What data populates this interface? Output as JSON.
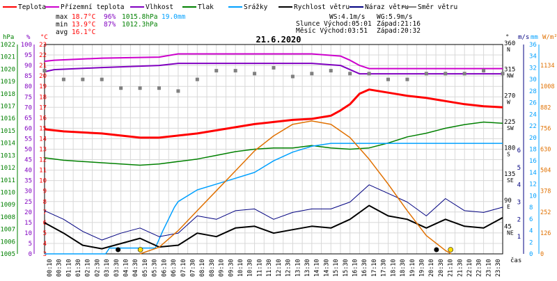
{
  "date": "21.6.2020",
  "legend": [
    {
      "label": "Teplota",
      "color": "#ff0000"
    },
    {
      "label": "Přízemní teplota",
      "color": "#cc00cc"
    },
    {
      "label": "Vlhkost",
      "color": "#8000c0"
    },
    {
      "label": "Tlak",
      "color": "#008000"
    },
    {
      "label": "Srážky",
      "color": "#00a0ff"
    },
    {
      "label": "Rychlost větru",
      "color": "#000000"
    },
    {
      "label": "Náraz větru",
      "color": "#000080"
    },
    {
      "label": "Směr větru",
      "color": "#808080"
    }
  ],
  "stats": {
    "max_label": "max",
    "max_temp": "18.7°C",
    "max_hum": "96%",
    "max_press": "1015.8hPa",
    "max_rain": "19.0mm",
    "min_label": "min",
    "min_temp": "13.9°C",
    "min_hum": "87%",
    "min_press": "1012.3hPa",
    "avg_label": "avg",
    "avg_temp": "16.1°C",
    "ws": "WS:4.1m/s",
    "wg": "WG:5.9m/s",
    "sun": "Slunce Východ:05:01",
    "sun_set": "Západ:21:16",
    "moon": "Měsíc  Východ:03:51",
    "moon_set": "Západ:20:32"
  },
  "axis_units": {
    "hpa": "hPa",
    "pct": "%",
    "deg": "°C",
    "dir": "°",
    "ms": "m/s",
    "mm": "mm",
    "wm2": "W/m²",
    "time": "čas"
  },
  "colors": {
    "temp": "#ff0000",
    "dew": "#cc00cc",
    "hum": "#8000c0",
    "press": "#008000",
    "rain": "#00a0ff",
    "wind": "#000000",
    "gust": "#000080",
    "dir": "#808080",
    "solar": "#e07000"
  },
  "chart_data": {
    "type": "line",
    "title": "21.6.2020",
    "xlabel": "čas",
    "x_ticks": [
      "00:10",
      "00:30",
      "01:10",
      "01:30",
      "02:10",
      "02:30",
      "03:10",
      "03:30",
      "04:10",
      "04:30",
      "05:10",
      "05:30",
      "06:10",
      "06:30",
      "07:10",
      "07:30",
      "08:10",
      "08:30",
      "09:10",
      "09:30",
      "10:10",
      "10:30",
      "11:10",
      "11:30",
      "12:10",
      "12:30",
      "13:10",
      "13:30",
      "14:10",
      "14:30",
      "15:10",
      "15:30",
      "16:10",
      "16:30",
      "17:10",
      "17:30",
      "18:10",
      "18:30",
      "19:10",
      "19:30",
      "20:10",
      "20:30",
      "21:10",
      "21:30",
      "22:10",
      "22:30",
      "23:10",
      "23:30"
    ],
    "left_axes": {
      "temperature_c": {
        "min": 3,
        "max": 23,
        "ticks": [
          3,
          4,
          5,
          6,
          7,
          8,
          9,
          10,
          11,
          12,
          13,
          14,
          15,
          16,
          17,
          18,
          19,
          20,
          21,
          22,
          23
        ]
      },
      "humidity_pct": {
        "min": 0,
        "max": 100,
        "ticks": [
          0,
          5,
          10,
          15,
          20,
          25,
          30,
          35,
          40,
          45,
          50,
          55,
          60,
          65,
          70,
          75,
          80,
          85,
          90,
          95,
          100
        ]
      },
      "pressure_hpa": {
        "min": 1005,
        "max": 1022,
        "ticks": [
          1005,
          1006,
          1007,
          1008,
          1009,
          1010,
          1011,
          1012,
          1013,
          1014,
          1015,
          1016,
          1017,
          1018,
          1019,
          1020,
          1021,
          1022
        ]
      }
    },
    "right_axes": {
      "wind_dir_deg": {
        "min": 0,
        "max": 360,
        "ticks": [
          {
            "v": 360,
            "l": "360",
            "d": "N"
          },
          {
            "v": 315,
            "l": "315",
            "d": "NW"
          },
          {
            "v": 270,
            "l": "270",
            "d": "W"
          },
          {
            "v": 225,
            "l": "225",
            "d": "SW"
          },
          {
            "v": 180,
            "l": "180",
            "d": "S"
          },
          {
            "v": 135,
            "l": "135",
            "d": "SE"
          },
          {
            "v": 90,
            "l": "90",
            "d": "E"
          },
          {
            "v": 45,
            "l": "45",
            "d": "NE"
          }
        ]
      },
      "wind_ms": {
        "min": 0,
        "max": 6,
        "ticks": [
          1,
          2,
          3,
          4,
          5,
          6
        ]
      },
      "rain_mm": {
        "min": 0,
        "max": 36,
        "ticks": [
          0,
          2,
          4,
          6,
          8,
          10,
          12,
          14,
          16,
          18,
          20,
          22,
          24,
          26,
          28,
          30,
          32,
          34,
          36
        ]
      },
      "solar_wm2": {
        "min": 0,
        "max": 1260,
        "ticks": [
          0,
          126,
          252,
          378,
          504,
          630,
          756,
          882,
          1008,
          1134
        ]
      }
    },
    "series": [
      {
        "name": "Teplota",
        "axis": "temperature_c",
        "x_hours": [
          0,
          1,
          3,
          5,
          6,
          7,
          8,
          9,
          10,
          11,
          12,
          13,
          14,
          15,
          15.5,
          16,
          16.5,
          17,
          18,
          19,
          20,
          21,
          22,
          23,
          24
        ],
        "values": [
          14.9,
          14.7,
          14.5,
          14.1,
          14.1,
          14.3,
          14.5,
          14.8,
          15.1,
          15.4,
          15.6,
          15.8,
          15.9,
          16.2,
          16.7,
          17.3,
          18.3,
          18.7,
          18.4,
          18.1,
          17.9,
          17.6,
          17.3,
          17.1,
          17.0
        ]
      },
      {
        "name": "Přízemní teplota",
        "axis": "temperature_c",
        "x_hours": [
          0,
          0.5,
          3,
          6,
          7,
          14,
          15.5,
          16,
          16.5,
          17,
          24
        ],
        "values": [
          21.4,
          21.5,
          21.7,
          21.8,
          22.1,
          22.1,
          21.9,
          21.5,
          21.0,
          20.7,
          20.7
        ]
      },
      {
        "name": "Vlhkost",
        "axis": "humidity_pct",
        "x_hours": [
          0,
          0.5,
          3,
          6,
          7,
          14,
          15.5,
          16,
          16.5,
          17,
          24
        ],
        "values": [
          87,
          88,
          89,
          90,
          91,
          91,
          90,
          88,
          86,
          86,
          86
        ]
      },
      {
        "name": "Tlak",
        "axis": "pressure_hpa",
        "x_hours": [
          0,
          1,
          2,
          3,
          4,
          5,
          6,
          7,
          8,
          9,
          10,
          11,
          12,
          13,
          14,
          15,
          16,
          17,
          18,
          19,
          20,
          21,
          22,
          23,
          24
        ],
        "values": [
          1012.8,
          1012.6,
          1012.5,
          1012.4,
          1012.3,
          1012.2,
          1012.3,
          1012.5,
          1012.7,
          1013.0,
          1013.3,
          1013.5,
          1013.6,
          1013.6,
          1013.8,
          1013.6,
          1013.5,
          1013.6,
          1014.0,
          1014.5,
          1014.8,
          1015.2,
          1015.5,
          1015.7,
          1015.6
        ]
      },
      {
        "name": "Srážky",
        "axis": "rain_mm",
        "x_hours": [
          0,
          3.2,
          3.4,
          5.8,
          6.2,
          6.8,
          7,
          8,
          9,
          10,
          11,
          12,
          13,
          14,
          15,
          24
        ],
        "values": [
          0,
          0,
          1.0,
          1.0,
          4,
          8,
          9,
          11,
          12,
          13,
          14,
          16,
          17.5,
          18.5,
          19.0,
          19.0
        ]
      },
      {
        "name": "Rychlost větru",
        "axis": "wind_ms",
        "x_hours": [
          0,
          1,
          2,
          3,
          4,
          5,
          6,
          7,
          8,
          9,
          10,
          11,
          12,
          13,
          14,
          15,
          16,
          17,
          18,
          19,
          20,
          21,
          22,
          23,
          24
        ],
        "values": [
          1.8,
          1.2,
          0.5,
          0.3,
          0.6,
          0.9,
          0.4,
          0.5,
          1.2,
          1.0,
          1.5,
          1.6,
          1.2,
          1.4,
          1.6,
          1.5,
          2.0,
          2.8,
          2.2,
          2.0,
          1.5,
          2.0,
          1.6,
          1.5,
          2.1
        ]
      },
      {
        "name": "Náraz větru",
        "axis": "wind_ms",
        "x_hours": [
          0,
          1,
          2,
          3,
          4,
          5,
          6,
          7,
          8,
          9,
          10,
          11,
          12,
          13,
          14,
          15,
          16,
          17,
          18,
          19,
          20,
          21,
          22,
          23,
          24
        ],
        "values": [
          2.5,
          2.0,
          1.3,
          0.8,
          1.2,
          1.5,
          1.0,
          1.2,
          2.2,
          2.0,
          2.5,
          2.6,
          2.0,
          2.4,
          2.6,
          2.6,
          3.0,
          4.0,
          3.5,
          3.0,
          2.2,
          3.2,
          2.5,
          2.4,
          2.7
        ]
      },
      {
        "name": "Směr větru",
        "axis": "wind_dir_deg",
        "x_hours": [
          0,
          1,
          2,
          3,
          4,
          5,
          6,
          7,
          8,
          9,
          10,
          11,
          12,
          13,
          14,
          15,
          16,
          17,
          18,
          19,
          20,
          21,
          22,
          23,
          24
        ],
        "values": [
          315,
          300,
          300,
          300,
          285,
          285,
          285,
          280,
          300,
          315,
          315,
          310,
          320,
          305,
          310,
          315,
          310,
          310,
          300,
          300,
          310,
          310,
          310,
          315,
          310
        ]
      },
      {
        "name": "Sluneční záření",
        "axis": "solar_wm2",
        "x_hours": [
          5,
          6,
          7,
          8,
          9,
          10,
          11,
          12,
          13,
          14,
          15,
          16,
          17,
          18,
          19,
          20,
          21,
          21.3
        ],
        "values": [
          0,
          40,
          140,
          260,
          380,
          500,
          620,
          710,
          780,
          800,
          780,
          700,
          570,
          420,
          260,
          110,
          20,
          0
        ]
      }
    ]
  }
}
